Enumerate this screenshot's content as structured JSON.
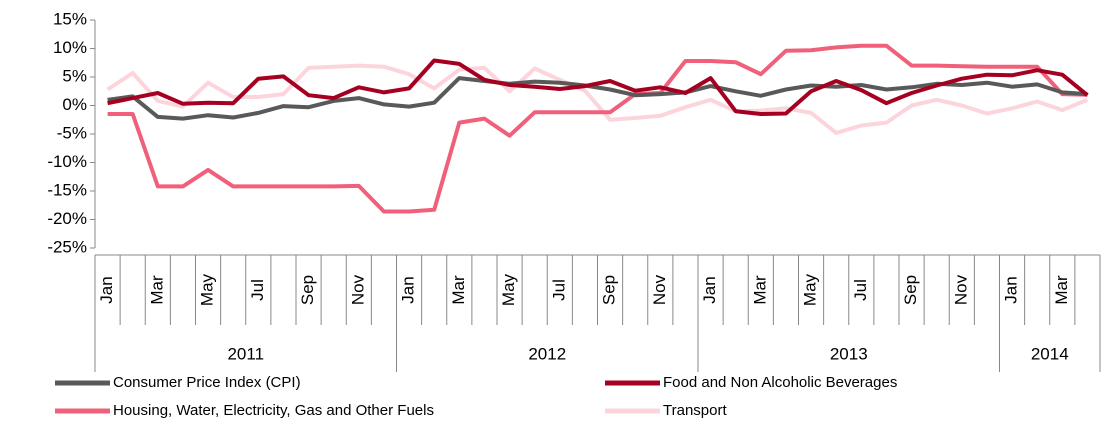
{
  "chart_data": {
    "type": "line",
    "categories": [
      "Jan",
      null,
      "Mar",
      null,
      "May",
      null,
      "Jul",
      null,
      "Sep",
      null,
      "Nov",
      null,
      "Jan",
      null,
      "Mar",
      null,
      "May",
      null,
      "Jul",
      null,
      "Sep",
      null,
      "Nov",
      null,
      "Jan",
      null,
      "Mar",
      null,
      "May",
      null,
      "Jul",
      null,
      "Sep",
      null,
      "Nov",
      null,
      "Jan",
      null,
      "Mar",
      null
    ],
    "year_groups": [
      {
        "label": "2011",
        "span": 12
      },
      {
        "label": "2012",
        "span": 12
      },
      {
        "label": "2013",
        "span": 12
      },
      {
        "label": "2014",
        "span": 4
      }
    ],
    "ylim": [
      -25,
      15
    ],
    "yticks": [
      {
        "value": -25,
        "label": "-25%"
      },
      {
        "value": -20,
        "label": "-20%"
      },
      {
        "value": -15,
        "label": "-15%"
      },
      {
        "value": -10,
        "label": "-10%"
      },
      {
        "value": -5,
        "label": "-5%"
      },
      {
        "value": 0,
        "label": "0%"
      },
      {
        "value": 5,
        "label": "5%"
      },
      {
        "value": 10,
        "label": "10%"
      },
      {
        "value": 15,
        "label": "15%"
      }
    ],
    "series": [
      {
        "name": "Consumer Price Index (CPI)",
        "color": "#595959",
        "values": [
          1.0,
          1.6,
          -2.0,
          -2.3,
          -1.7,
          -2.1,
          -1.3,
          -0.1,
          -0.3,
          0.8,
          1.3,
          0.2,
          -0.2,
          0.5,
          4.8,
          4.3,
          3.8,
          4.2,
          4.0,
          3.5,
          2.8,
          1.8,
          2.0,
          2.3,
          3.4,
          2.5,
          1.7,
          2.8,
          3.5,
          3.3,
          3.6,
          2.8,
          3.2,
          3.8,
          3.6,
          4.0,
          3.3,
          3.7,
          2.3,
          2.0
        ]
      },
      {
        "name": "Food and Non Alcoholic Beverages",
        "color": "#a50021",
        "values": [
          0.4,
          1.3,
          2.2,
          0.3,
          0.5,
          0.4,
          4.7,
          5.1,
          1.8,
          1.3,
          3.2,
          2.3,
          3.0,
          7.9,
          7.3,
          4.5,
          3.6,
          3.3,
          2.9,
          3.4,
          4.3,
          2.6,
          3.2,
          2.2,
          4.8,
          -1.0,
          -1.5,
          -1.4,
          2.5,
          4.3,
          2.7,
          0.4,
          2.2,
          3.5,
          4.7,
          5.4,
          5.3,
          6.2,
          5.4,
          1.8
        ]
      },
      {
        "name": "Housing, Water, Electricity, Gas and Other Fuels",
        "color": "#f0607a",
        "values": [
          -1.5,
          -1.5,
          -14.2,
          -14.2,
          -11.3,
          -14.2,
          -14.2,
          -14.2,
          -14.2,
          -14.2,
          -14.1,
          -18.6,
          -18.6,
          -18.3,
          -3.0,
          -2.3,
          -5.3,
          -1.2,
          -1.2,
          -1.2,
          -1.2,
          2.0,
          2.2,
          7.8,
          7.8,
          7.6,
          5.5,
          9.6,
          9.7,
          10.2,
          10.5,
          10.5,
          7.0,
          7.0,
          6.9,
          6.8,
          6.8,
          6.8,
          2.0,
          1.9
        ]
      },
      {
        "name": "Transport",
        "color": "#fcd5dc",
        "values": [
          2.8,
          5.7,
          0.8,
          -0.2,
          4.0,
          1.5,
          1.5,
          2.0,
          6.6,
          6.8,
          7.0,
          6.8,
          5.5,
          3.0,
          6.3,
          6.6,
          2.5,
          6.5,
          4.5,
          2.6,
          -2.5,
          -2.2,
          -1.8,
          -0.3,
          1.0,
          -1.0,
          -0.9,
          -0.5,
          -1.3,
          -4.8,
          -3.5,
          -3.0,
          0.0,
          1.0,
          0.0,
          -1.4,
          -0.5,
          0.7,
          -0.8,
          1.0
        ]
      }
    ]
  }
}
